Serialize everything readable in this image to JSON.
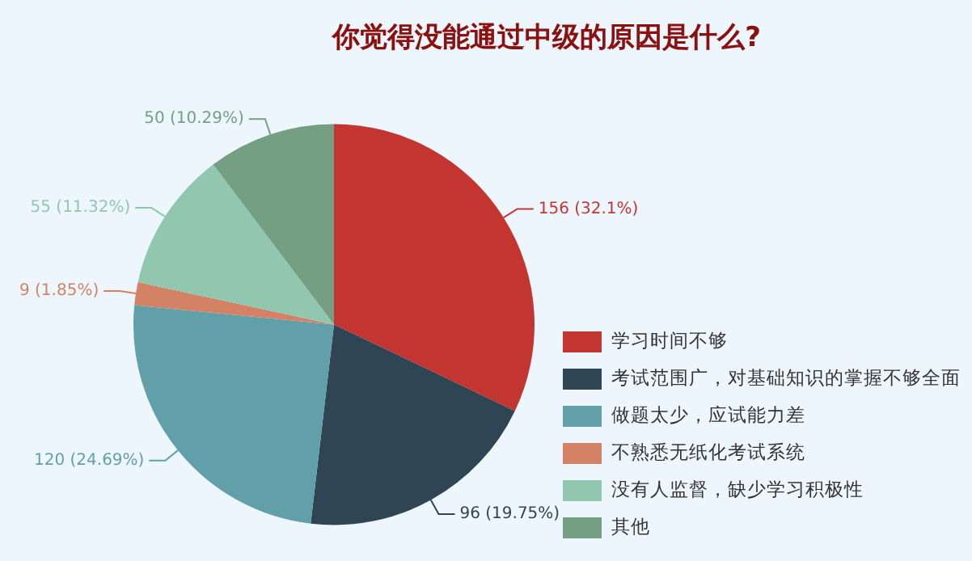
{
  "chart_data": {
    "type": "pie",
    "title": "你觉得没能通过中级的原因是什么?",
    "categories": [
      "学习时间不够",
      "考试范围广，对基础知识的掌握不够全面",
      "做题太少，应试能力差",
      "不熟悉无纸化考试系统",
      "没有人监督，缺少学习积极性",
      "其他"
    ],
    "values": [
      156,
      96,
      120,
      9,
      55,
      50
    ],
    "colors": [
      "#c23531",
      "#2f4554",
      "#61a0a8",
      "#d48265",
      "#91c7ae",
      "#749f83"
    ],
    "value_labels": [
      "156 (32.1%)",
      "96 (19.75%)",
      "120 (24.69%)",
      "9 (1.85%)",
      "55 (11.32%)",
      "50 (10.29%)"
    ],
    "legend": "bottom right"
  }
}
